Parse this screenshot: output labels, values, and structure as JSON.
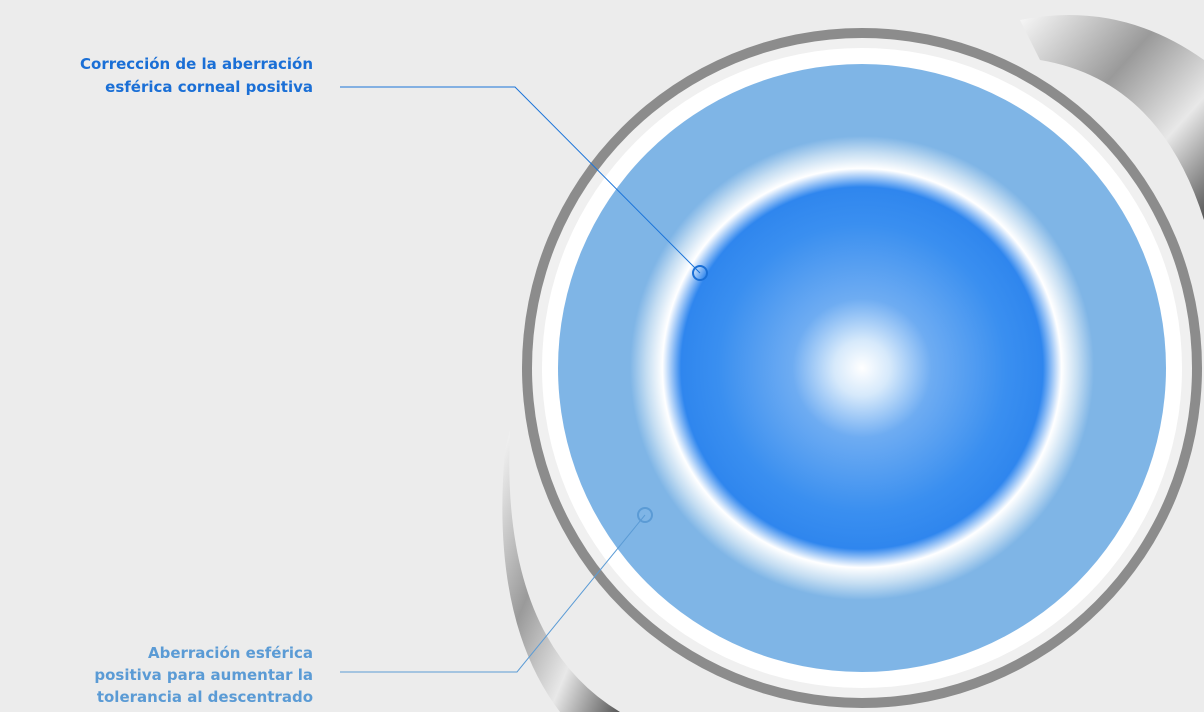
{
  "labels": [
    {
      "lines": [
        "Corrección de la aberración",
        "esférica corneal positiva"
      ]
    },
    {
      "lines": [
        "Aberración esférica",
        "positiva para aumentar la",
        "tolerancia al descentrado"
      ]
    }
  ]
}
